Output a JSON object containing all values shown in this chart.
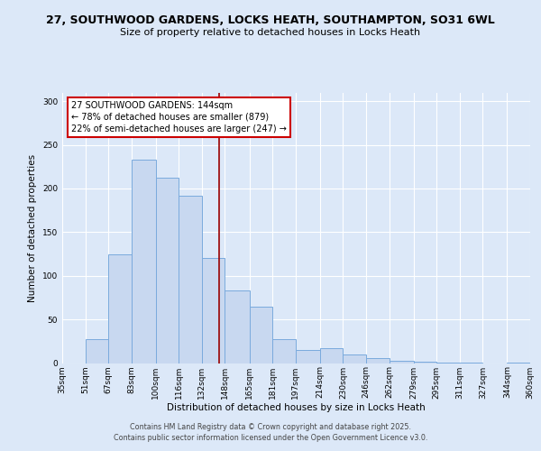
{
  "title": "27, SOUTHWOOD GARDENS, LOCKS HEATH, SOUTHAMPTON, SO31 6WL",
  "subtitle": "Size of property relative to detached houses in Locks Heath",
  "xlabel": "Distribution of detached houses by size in Locks Heath",
  "ylabel": "Number of detached properties",
  "bar_color": "#c8d8f0",
  "bar_edge_color": "#7aaadd",
  "background_color": "#dce8f8",
  "plot_bg_color": "#dce8f8",
  "bin_edges": [
    35,
    51,
    67,
    83,
    100,
    116,
    132,
    148,
    165,
    181,
    197,
    214,
    230,
    246,
    262,
    279,
    295,
    311,
    327,
    344,
    360
  ],
  "bar_heights": [
    0,
    27,
    125,
    233,
    212,
    192,
    120,
    83,
    65,
    27,
    15,
    17,
    10,
    6,
    3,
    2,
    1,
    1,
    0,
    1
  ],
  "vline_x": 144,
  "vline_color": "#990000",
  "ylim": [
    0,
    310
  ],
  "yticks": [
    0,
    50,
    100,
    150,
    200,
    250,
    300
  ],
  "annotation_title": "27 SOUTHWOOD GARDENS: 144sqm",
  "annotation_line1": "← 78% of detached houses are smaller (879)",
  "annotation_line2": "22% of semi-detached houses are larger (247) →",
  "annotation_box_color": "#ffffff",
  "annotation_box_edge_color": "#cc0000",
  "footer1": "Contains HM Land Registry data © Crown copyright and database right 2025.",
  "footer2": "Contains public sector information licensed under the Open Government Licence v3.0.",
  "tick_labels": [
    "35sqm",
    "51sqm",
    "67sqm",
    "83sqm",
    "100sqm",
    "116sqm",
    "132sqm",
    "148sqm",
    "165sqm",
    "181sqm",
    "197sqm",
    "214sqm",
    "230sqm",
    "246sqm",
    "262sqm",
    "279sqm",
    "295sqm",
    "311sqm",
    "327sqm",
    "344sqm",
    "360sqm"
  ]
}
